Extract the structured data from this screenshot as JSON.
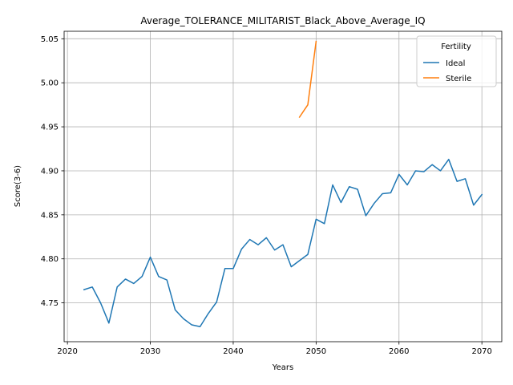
{
  "chart_data": {
    "type": "line",
    "title": "Average_TOLERANCE_MILITARIST_Black_Above_Average_IQ",
    "xlabel": "Years",
    "ylabel": "Score(3-6)",
    "xlim": [
      2019.6,
      2072.4
    ],
    "ylim": [
      4.7059,
      5.0585
    ],
    "x_ticks": [
      2020,
      2030,
      2040,
      2050,
      2060,
      2070
    ],
    "y_ticks": [
      4.75,
      4.8,
      4.85,
      4.9,
      4.95,
      5.0,
      5.05
    ],
    "x_tick_labels": [
      "2020",
      "2030",
      "2040",
      "2050",
      "2060",
      "2070"
    ],
    "y_tick_labels": [
      "4.75",
      "4.80",
      "4.85",
      "4.90",
      "4.95",
      "5.00",
      "5.05"
    ],
    "grid": true,
    "legend": {
      "title": "Fertility",
      "placement": "top-right"
    },
    "series": [
      {
        "name": "Ideal",
        "color": "#1f77b4",
        "x": [
          2022,
          2023,
          2024,
          2025,
          2026,
          2027,
          2028,
          2029,
          2030,
          2031,
          2032,
          2033,
          2034,
          2035,
          2036,
          2037,
          2038,
          2039,
          2040,
          2041,
          2042,
          2043,
          2044,
          2045,
          2046,
          2047,
          2048,
          2049,
          2050,
          2051,
          2052,
          2053,
          2054,
          2055,
          2056,
          2057,
          2058,
          2059,
          2060,
          2061,
          2062,
          2063,
          2064,
          2065,
          2066,
          2067,
          2068,
          2069,
          2070
        ],
        "y": [
          4.765,
          4.768,
          4.75,
          4.727,
          4.768,
          4.777,
          4.772,
          4.78,
          4.802,
          4.78,
          4.776,
          4.742,
          4.732,
          4.725,
          4.723,
          4.738,
          4.751,
          4.789,
          4.789,
          4.811,
          4.822,
          4.816,
          4.824,
          4.81,
          4.816,
          4.791,
          4.798,
          4.805,
          4.845,
          4.84,
          4.884,
          4.864,
          4.882,
          4.879,
          4.849,
          4.863,
          4.874,
          4.875,
          4.896,
          4.884,
          4.9,
          4.899,
          4.907,
          4.9,
          4.913,
          4.888,
          4.891,
          4.861,
          4.873
        ]
      },
      {
        "name": "Sterile",
        "color": "#ff7f0e",
        "x": [
          2048,
          2049,
          2050
        ],
        "y": [
          4.961,
          4.975,
          5.047
        ]
      }
    ]
  }
}
